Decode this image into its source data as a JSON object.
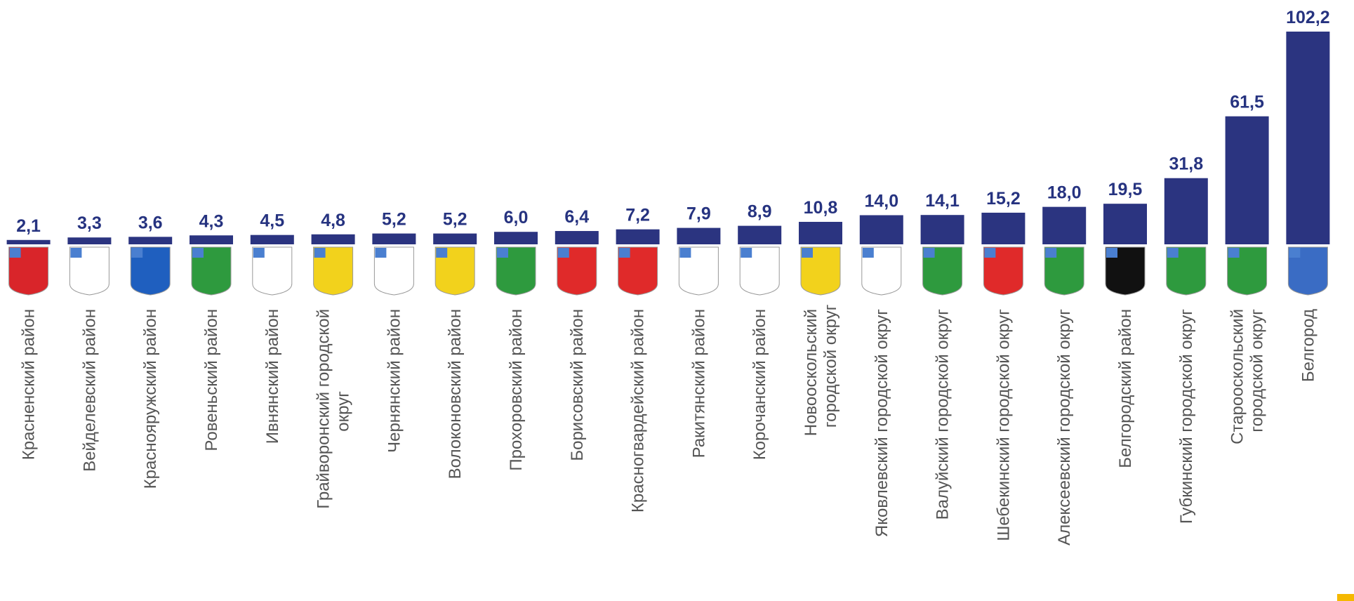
{
  "chart_data": {
    "type": "bar",
    "color": "#2b3480",
    "categories": [
      "Красненский район",
      "Вейделевский район",
      "Краснояружский район",
      "Ровеньский район",
      "Ивнянский район",
      "Грайворонский городской округ",
      "Чернянский район",
      "Волоконовский район",
      "Прохоровский район",
      "Борисовский район",
      "Красногвардейский район",
      "Ракитянский район",
      "Корочанский район",
      "Новооскольский городской округ",
      "Яковлевский городской округ",
      "Валуйский городской округ",
      "Шебекинский городской округ",
      "Алексеевский городской округ",
      "Белгородский район",
      "Губкинский городской округ",
      "Старооскольский городской округ",
      "Белгород"
    ],
    "values": [
      2.1,
      3.3,
      3.6,
      4.3,
      4.5,
      4.8,
      5.2,
      5.2,
      6.0,
      6.4,
      7.2,
      7.9,
      8.9,
      10.8,
      14.0,
      14.1,
      15.2,
      18.0,
      19.5,
      31.8,
      61.5,
      102.2
    ],
    "value_labels": [
      "2,1",
      "3,3",
      "3,6",
      "4,3",
      "4,5",
      "4,8",
      "5,2",
      "5,2",
      "6,0",
      "6,4",
      "7,2",
      "7,9",
      "8,9",
      "10,8",
      "14,0",
      "14,1",
      "15,2",
      "18,0",
      "19,5",
      "31,8",
      "61,5",
      "102,2"
    ]
  }
}
